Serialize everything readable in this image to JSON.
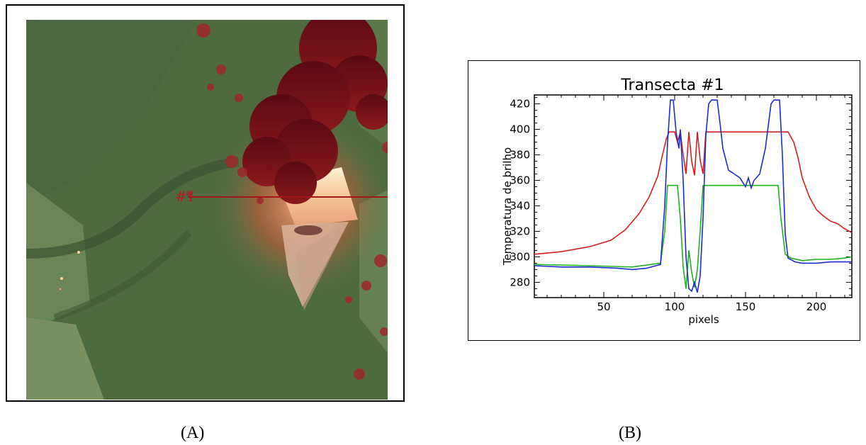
{
  "panel_a": {
    "caption": "(A)",
    "transect_label": "#1"
  },
  "panel_b": {
    "caption": "(B)"
  },
  "chart_data": {
    "type": "line",
    "title": "Transecta #1",
    "xlabel": "pixels",
    "ylabel": "Temperatura de brilho",
    "xlim": [
      1,
      225
    ],
    "ylim": [
      268,
      427
    ],
    "xticks": [
      50,
      100,
      150,
      200
    ],
    "yticks": [
      280,
      300,
      320,
      340,
      360,
      380,
      400,
      420
    ],
    "grid": false,
    "series": [
      {
        "color": "#d42020",
        "x": [
          1,
          20,
          40,
          55,
          65,
          75,
          82,
          88,
          91,
          94,
          96,
          98,
          100,
          102,
          104,
          106,
          108,
          110,
          112,
          114,
          116,
          118,
          120,
          122,
          124,
          130,
          150,
          170,
          180,
          184,
          187,
          190,
          195,
          200,
          205,
          210,
          215,
          220,
          225
        ],
        "y": [
          302,
          304,
          308,
          313,
          321,
          334,
          347,
          363,
          378,
          392,
          398,
          398,
          398,
          390,
          398,
          380,
          365,
          398,
          375,
          364,
          398,
          376,
          365,
          398,
          398,
          398,
          398,
          398,
          398,
          390,
          378,
          362,
          347,
          337,
          332,
          328,
          326,
          322,
          319
        ]
      },
      {
        "color": "#20b020",
        "x": [
          1,
          40,
          70,
          90,
          93,
          95,
          98,
          100,
          102,
          104,
          106,
          108,
          110,
          112,
          114,
          116,
          118,
          120,
          122,
          124,
          126,
          150,
          173,
          175,
          178,
          182,
          190,
          200,
          210,
          220,
          225
        ],
        "y": [
          294,
          293,
          292,
          295,
          320,
          356,
          356,
          356,
          356,
          330,
          292,
          275,
          305,
          288,
          276,
          290,
          320,
          356,
          356,
          356,
          356,
          356,
          356,
          330,
          302,
          299,
          297,
          298,
          298,
          299,
          300
        ]
      },
      {
        "color": "#1a2ecc",
        "x": [
          1,
          20,
          40,
          60,
          70,
          80,
          90,
          93,
          95,
          97,
          99,
          101,
          103,
          104,
          106,
          108,
          110,
          112,
          114,
          116,
          118,
          120,
          122,
          124,
          126,
          128,
          130,
          132,
          134,
          138,
          142,
          146,
          150,
          152,
          154,
          156,
          160,
          164,
          168,
          170,
          172,
          174,
          176,
          178,
          180,
          185,
          190,
          200,
          210,
          220,
          225
        ],
        "y": [
          293,
          292,
          292,
          291,
          290,
          291,
          294,
          340,
          390,
          423,
          423,
          398,
          385,
          400,
          360,
          300,
          275,
          273,
          280,
          272,
          285,
          330,
          395,
          420,
          423,
          423,
          423,
          405,
          385,
          368,
          365,
          362,
          355,
          362,
          354,
          360,
          365,
          385,
          420,
          423,
          423,
          423,
          380,
          318,
          299,
          296,
          295,
          295,
          296,
          296,
          296
        ]
      }
    ]
  }
}
